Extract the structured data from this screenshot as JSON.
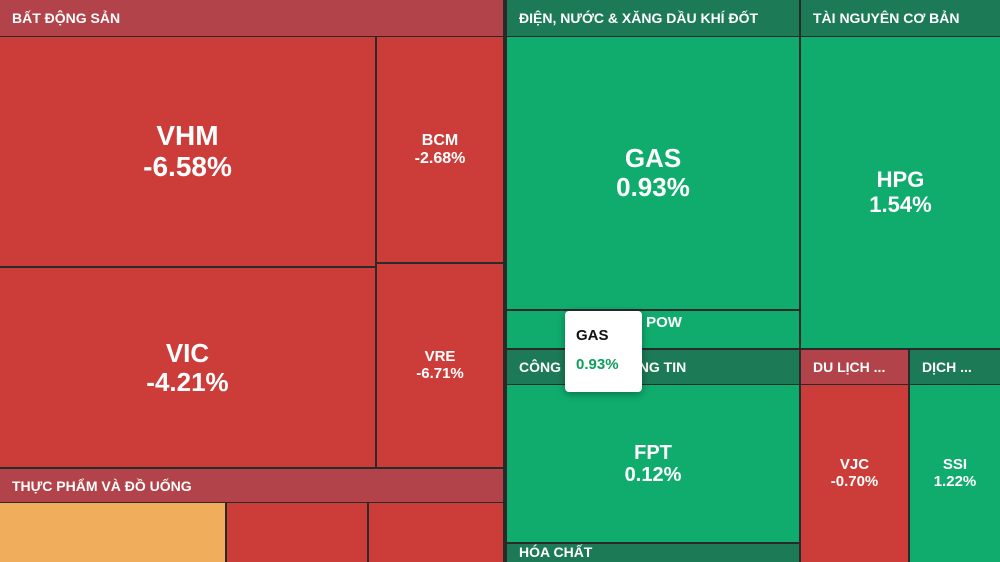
{
  "sectors": [
    {
      "name": "BẤT ĐỘNG SẢN",
      "tiles": [
        {
          "symbol": "VHM",
          "change": "-6.58%"
        },
        {
          "symbol": "VIC",
          "change": "-4.21%"
        },
        {
          "symbol": "BCM",
          "change": "-2.68%"
        },
        {
          "symbol": "VRE",
          "change": "-6.71%"
        }
      ]
    },
    {
      "name": "THỰC PHẨM VÀ ĐỒ UỐNG",
      "tiles": []
    },
    {
      "name": "ĐIỆN, NƯỚC & XĂNG DẦU KHÍ ĐỐT",
      "tiles": [
        {
          "symbol": "GAS",
          "change": "0.93%"
        },
        {
          "symbol": "POW"
        }
      ]
    },
    {
      "name": "CÔNG NGHỆ THÔNG TIN",
      "tiles": [
        {
          "symbol": "FPT",
          "change": "0.12%"
        }
      ]
    },
    {
      "name": "HÓA CHẤT",
      "tiles": []
    },
    {
      "name": "TÀI NGUYÊN CƠ BẢN",
      "tiles": [
        {
          "symbol": "HPG",
          "change": "1.54%"
        }
      ]
    },
    {
      "name": "DU LỊCH ...",
      "tiles": [
        {
          "symbol": "VJC",
          "change": "-0.70%"
        }
      ]
    },
    {
      "name": "DỊCH ...",
      "tiles": [
        {
          "symbol": "SSI",
          "change": "1.22%"
        }
      ]
    }
  ],
  "tooltip": {
    "symbol": "GAS",
    "change": "0.93%"
  }
}
